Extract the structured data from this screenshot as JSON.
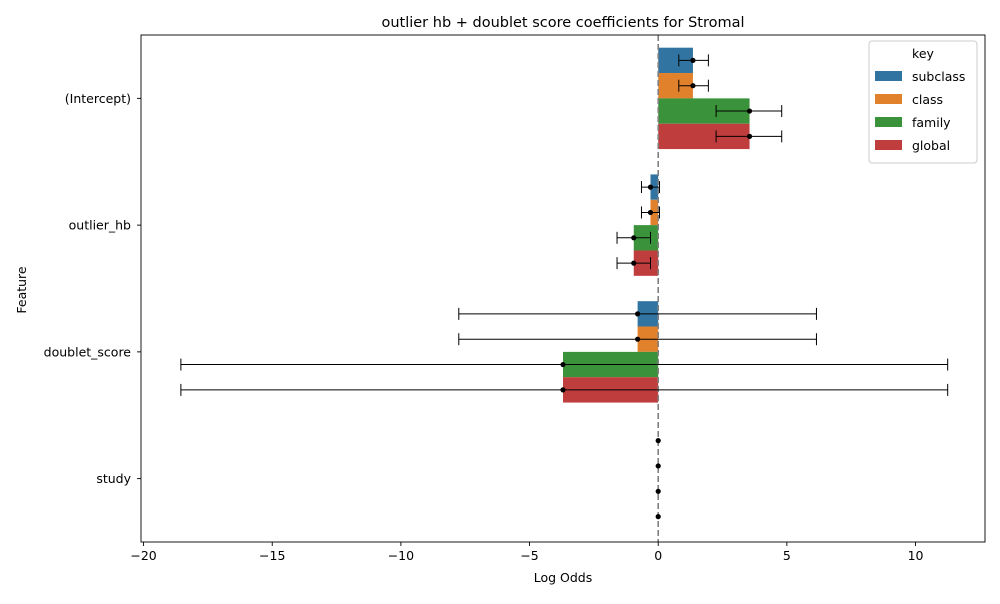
{
  "chart_data": {
    "type": "bar",
    "orientation": "horizontal",
    "title": "outlier hb + doublet score coefficients for Stromal",
    "xlabel": "Log Odds",
    "ylabel": "Feature",
    "xlim": [
      -20.1,
      12.7
    ],
    "xticks": [
      -20,
      -15,
      -10,
      -5,
      0,
      5,
      10
    ],
    "xtick_labels": [
      "−20",
      "−15",
      "−10",
      "−5",
      "0",
      "5",
      "10"
    ],
    "categories": [
      "(Intercept)",
      "outlier_hb",
      "doublet_score",
      "study"
    ],
    "reference_line": {
      "x": 0,
      "style": "dashed",
      "color": "#808080"
    },
    "legend": {
      "title": "key",
      "position": "top-right"
    },
    "series": [
      {
        "name": "subclass",
        "color": "#3274a1",
        "values": [
          1.35,
          -0.3,
          -0.8,
          0.0
        ],
        "error_low": [
          0.8,
          -0.65,
          -7.75,
          0.0
        ],
        "error_high": [
          1.95,
          0.05,
          6.15,
          0.0
        ]
      },
      {
        "name": "class",
        "color": "#e1812c",
        "values": [
          1.35,
          -0.3,
          -0.8,
          0.0
        ],
        "error_low": [
          0.8,
          -0.65,
          -7.75,
          0.0
        ],
        "error_high": [
          1.95,
          0.05,
          6.15,
          0.0
        ]
      },
      {
        "name": "family",
        "color": "#3a923a",
        "values": [
          3.55,
          -0.95,
          -3.7,
          0.0
        ],
        "error_low": [
          2.25,
          -1.6,
          -18.55,
          0.0
        ],
        "error_high": [
          4.8,
          -0.3,
          11.25,
          0.0
        ]
      },
      {
        "name": "global",
        "color": "#c03d3e",
        "values": [
          3.55,
          -0.95,
          -3.7,
          0.0
        ],
        "error_low": [
          2.25,
          -1.6,
          -18.55,
          0.0
        ],
        "error_high": [
          4.8,
          -0.3,
          11.25,
          0.0
        ]
      }
    ]
  }
}
